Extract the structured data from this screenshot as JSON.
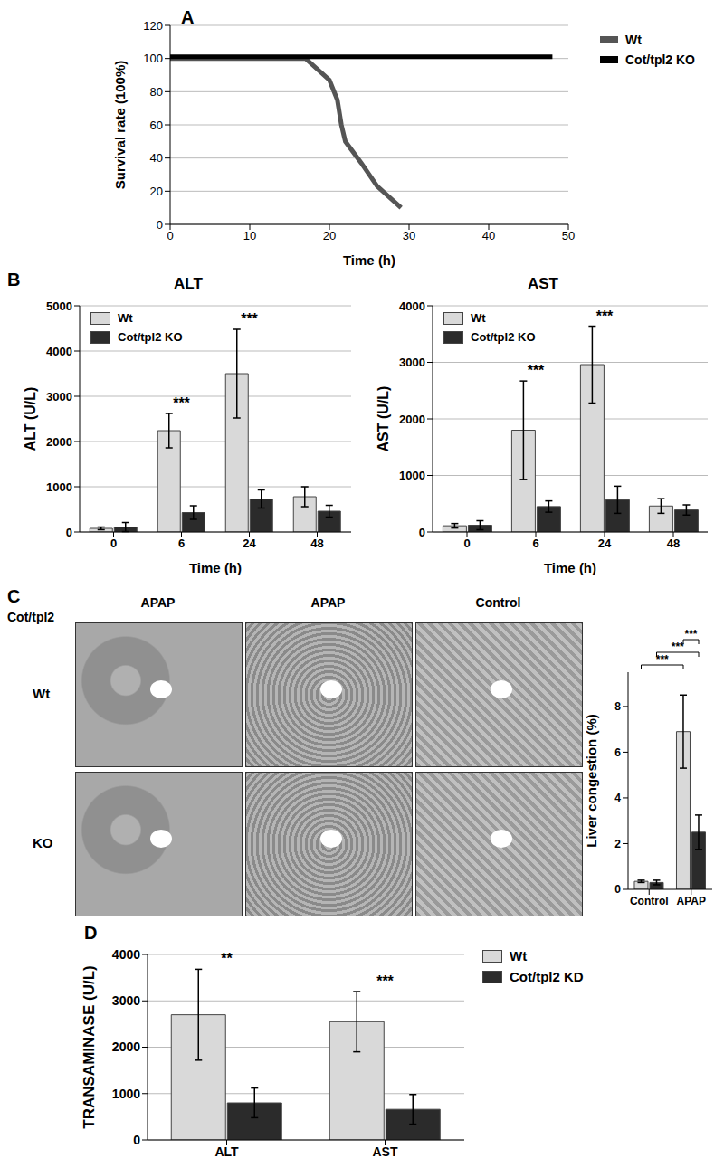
{
  "chart_data": [
    {
      "panel": "A",
      "type": "line",
      "xlabel": "Time (h)",
      "ylabel": "Survival rate (100%)",
      "xlim": [
        0,
        50
      ],
      "xticks": [
        0,
        10,
        20,
        30,
        40,
        50
      ],
      "ylim": [
        0,
        120
      ],
      "yticks": [
        0,
        20,
        40,
        60,
        80,
        100,
        120
      ],
      "grid": true,
      "legend": "right",
      "series": [
        {
          "name": "Wt",
          "color": "#555555",
          "x": [
            0,
            17,
            20,
            21,
            21.5,
            22,
            24,
            26,
            29
          ],
          "values": [
            100,
            100,
            87,
            75,
            60,
            50,
            37,
            23,
            10
          ]
        },
        {
          "name": "Cot/tpl2 KO",
          "color": "#000000",
          "x": [
            0,
            48
          ],
          "values": [
            101,
            101
          ]
        }
      ]
    },
    {
      "panel": "B",
      "type": "bar",
      "title": "ALT",
      "xlabel": "Time (h)",
      "ylabel": "ALT (U/L)",
      "categories": [
        "0",
        "6",
        "24",
        "48"
      ],
      "ylim": [
        0,
        5000
      ],
      "yticks": [
        0,
        1000,
        2000,
        3000,
        4000,
        5000
      ],
      "grid": true,
      "legend": "upper left",
      "series": [
        {
          "name": "Wt",
          "color": "#d9d9d9",
          "values": [
            80,
            2240,
            3500,
            780
          ],
          "errors": [
            30,
            380,
            980,
            220
          ],
          "significance": [
            null,
            "***",
            "***",
            null
          ]
        },
        {
          "name": "Cot/tpl2 KO",
          "color": "#2b2b2b",
          "values": [
            110,
            430,
            730,
            460
          ],
          "errors": [
            100,
            150,
            200,
            130
          ]
        }
      ]
    },
    {
      "type": "bar",
      "title": "AST",
      "xlabel": "Time (h)",
      "ylabel": "AST (U/L)",
      "categories": [
        "0",
        "6",
        "24",
        "48"
      ],
      "ylim": [
        0,
        4000
      ],
      "yticks": [
        0,
        1000,
        2000,
        3000,
        4000
      ],
      "grid": true,
      "legend": "upper left",
      "series": [
        {
          "name": "Wt",
          "color": "#d9d9d9",
          "values": [
            110,
            1800,
            2960,
            460
          ],
          "errors": [
            40,
            870,
            680,
            130
          ],
          "significance": [
            null,
            "***",
            "***",
            null
          ]
        },
        {
          "name": "Cot/tpl2 KO",
          "color": "#2b2b2b",
          "values": [
            120,
            450,
            570,
            390
          ],
          "errors": [
            80,
            100,
            240,
            90
          ]
        }
      ]
    },
    {
      "panel": "C",
      "type": "bar",
      "ylabel": "Liver congestion (%)",
      "categories": [
        "Control",
        "APAP"
      ],
      "ylim": [
        0,
        9.5
      ],
      "yticks": [
        0,
        2,
        4,
        6,
        8
      ],
      "grid": false,
      "brackets": [
        "***",
        "***",
        "***"
      ],
      "series": [
        {
          "name": "Wt",
          "color": "#d9d9d9",
          "values": [
            0.35,
            6.9
          ],
          "errors": [
            0.05,
            1.6
          ]
        },
        {
          "name": "KO",
          "color": "#2b2b2b",
          "values": [
            0.3,
            2.5
          ],
          "errors": [
            0.1,
            0.75
          ]
        }
      ]
    },
    {
      "panel": "D",
      "type": "bar",
      "ylabel": "TRANSAMINASE (U/L)",
      "categories": [
        "ALT",
        "AST"
      ],
      "ylim": [
        0,
        4000
      ],
      "yticks": [
        0,
        1000,
        2000,
        3000,
        4000
      ],
      "grid": true,
      "legend": "right",
      "series": [
        {
          "name": "Wt",
          "color": "#d9d9d9",
          "values": [
            2700,
            2550
          ],
          "errors": [
            980,
            650
          ],
          "significance": [
            "**",
            "***"
          ]
        },
        {
          "name": "Cot/tpl2 KD",
          "color": "#2b2b2b",
          "values": [
            800,
            660
          ],
          "errors": [
            320,
            320
          ]
        }
      ]
    }
  ],
  "image_panel": {
    "group_label": "Cot/tpl2",
    "columns": [
      "APAP",
      "APAP",
      "Control"
    ],
    "rows": [
      "Wt",
      "KO"
    ]
  }
}
